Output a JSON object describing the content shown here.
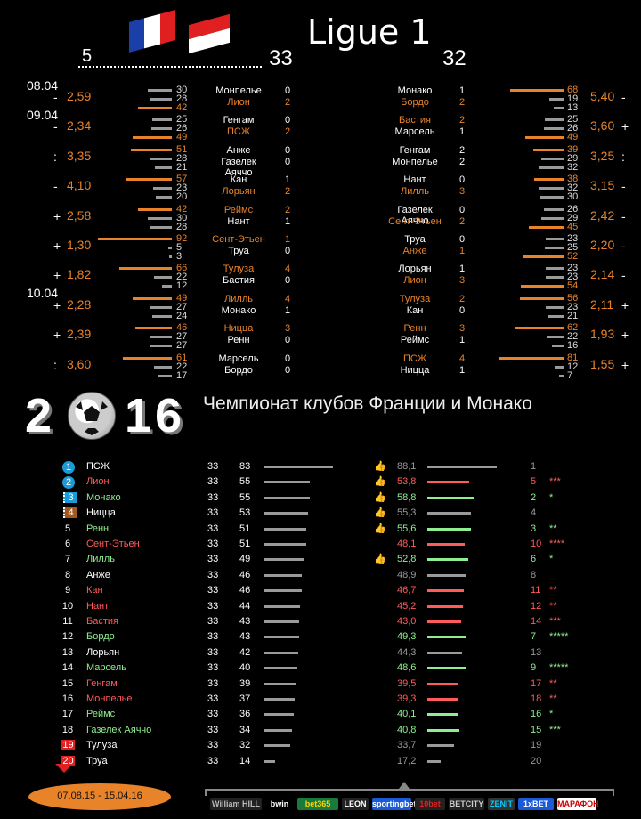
{
  "header": {
    "title": "Ligue 1",
    "round_left": "5",
    "round_mid": "33",
    "round_right": "32"
  },
  "dates": [
    "08.04",
    "09.04",
    "10.04"
  ],
  "left_matches": [
    {
      "sign": "-",
      "odd": "2,59",
      "home": "Монпелье",
      "away": "Лион",
      "hs": "0",
      "as": "2",
      "hc": "wh",
      "ac": "or",
      "stats": [
        "30",
        "28",
        "42"
      ]
    },
    {
      "sign": "-",
      "odd": "2,34",
      "home": "Генгам",
      "away": "ПСЖ",
      "hs": "0",
      "as": "2",
      "hc": "wh",
      "ac": "or",
      "stats": [
        "25",
        "26",
        "49"
      ]
    },
    {
      "sign": ":",
      "odd": "3,35",
      "home": "Анже",
      "away": "Газелек Аяччо",
      "hs": "0",
      "as": "0",
      "hc": "wh",
      "ac": "wh",
      "stats": [
        "51",
        "28",
        "21"
      ]
    },
    {
      "sign": "-",
      "odd": "4,10",
      "home": "Кан",
      "away": "Лорьян",
      "hs": "1",
      "as": "2",
      "hc": "wh",
      "ac": "or",
      "stats": [
        "57",
        "23",
        "20"
      ]
    },
    {
      "sign": "+",
      "odd": "2,58",
      "home": "Реймс",
      "away": "Нант",
      "hs": "2",
      "as": "1",
      "hc": "or",
      "ac": "wh",
      "stats": [
        "42",
        "30",
        "28"
      ]
    },
    {
      "sign": "+",
      "odd": "1,30",
      "home": "Сент-Этьен",
      "away": "Труа",
      "hs": "1",
      "as": "0",
      "hc": "or",
      "ac": "wh",
      "stats": [
        "92",
        "5",
        "3"
      ]
    },
    {
      "sign": "+",
      "odd": "1,82",
      "home": "Тулуза",
      "away": "Бастия",
      "hs": "4",
      "as": "0",
      "hc": "or",
      "ac": "wh",
      "stats": [
        "66",
        "22",
        "12"
      ]
    },
    {
      "sign": "+",
      "odd": "2,28",
      "home": "Лилль",
      "away": "Монако",
      "hs": "4",
      "as": "1",
      "hc": "or",
      "ac": "wh",
      "stats": [
        "49",
        "27",
        "24"
      ]
    },
    {
      "sign": "+",
      "odd": "2,39",
      "home": "Ницца",
      "away": "Ренн",
      "hs": "3",
      "as": "0",
      "hc": "or",
      "ac": "wh",
      "stats": [
        "46",
        "27",
        "27"
      ]
    },
    {
      "sign": ":",
      "odd": "3,60",
      "home": "Марсель",
      "away": "Бордо",
      "hs": "0",
      "as": "0",
      "hc": "wh",
      "ac": "wh",
      "stats": [
        "61",
        "22",
        "17"
      ]
    }
  ],
  "right_matches": [
    {
      "sign": "-",
      "odd": "5,40",
      "home": "Монако",
      "away": "Бордо",
      "hs": "1",
      "as": "2",
      "hc": "wh",
      "ac": "or",
      "stats": [
        "68",
        "19",
        "13"
      ]
    },
    {
      "sign": "+",
      "odd": "3,60",
      "home": "Бастия",
      "away": "Марсель",
      "hs": "2",
      "as": "1",
      "hc": "or",
      "ac": "wh",
      "stats": [
        "25",
        "26",
        "49"
      ]
    },
    {
      "sign": ":",
      "odd": "3,25",
      "home": "Генгам",
      "away": "Монпелье",
      "hs": "2",
      "as": "2",
      "hc": "wh",
      "ac": "wh",
      "stats": [
        "39",
        "29",
        "32"
      ]
    },
    {
      "sign": "-",
      "odd": "3,15",
      "home": "Нант",
      "away": "Лилль",
      "hs": "0",
      "as": "3",
      "hc": "wh",
      "ac": "or",
      "stats": [
        "38",
        "32",
        "30"
      ]
    },
    {
      "sign": "-",
      "odd": "2,42",
      "home": "Газелек Аяччо",
      "away": "Сент-Этьен",
      "hs": "0",
      "as": "2",
      "hc": "wh",
      "ac": "or",
      "stats": [
        "26",
        "29",
        "45"
      ]
    },
    {
      "sign": "-",
      "odd": "2,20",
      "home": "Труа",
      "away": "Анже",
      "hs": "0",
      "as": "1",
      "hc": "wh",
      "ac": "or",
      "stats": [
        "23",
        "25",
        "52"
      ]
    },
    {
      "sign": "-",
      "odd": "2,14",
      "home": "Лорьян",
      "away": "Лион",
      "hs": "1",
      "as": "3",
      "hc": "wh",
      "ac": "or",
      "stats": [
        "23",
        "23",
        "54"
      ]
    },
    {
      "sign": "+",
      "odd": "2,11",
      "home": "Тулуза",
      "away": "Кан",
      "hs": "2",
      "as": "0",
      "hc": "or",
      "ac": "wh",
      "stats": [
        "56",
        "23",
        "21"
      ]
    },
    {
      "sign": "+",
      "odd": "1,93",
      "home": "Ренн",
      "away": "Реймс",
      "hs": "3",
      "as": "1",
      "hc": "or",
      "ac": "wh",
      "stats": [
        "62",
        "22",
        "16"
      ]
    },
    {
      "sign": "+",
      "odd": "1,55",
      "home": "ПСЖ",
      "away": "Ницца",
      "hs": "4",
      "as": "1",
      "hc": "or",
      "ac": "wh",
      "stats": [
        "81",
        "12",
        "7"
      ]
    }
  ],
  "logo_year_parts": [
    "2",
    "1",
    "6"
  ],
  "championship_title": "Чемпионат клубов Франции и Монако",
  "table": [
    {
      "pos": "1",
      "name": "ПСЖ",
      "games": "33",
      "pts": "83",
      "rating": "88,1",
      "rank": "1",
      "stars": "",
      "nc": "wh",
      "rc": "gy",
      "badge": "circ",
      "thumb": true
    },
    {
      "pos": "2",
      "name": "Лион",
      "games": "33",
      "pts": "55",
      "rating": "53,8",
      "rank": "5",
      "stars": "***",
      "nc": "rd",
      "rc": "rd",
      "badge": "circ",
      "thumb": true
    },
    {
      "pos": "3",
      "name": "Монако",
      "games": "33",
      "pts": "55",
      "rating": "58,8",
      "rank": "2",
      "stars": "*",
      "nc": "gr",
      "rc": "gr",
      "badge": "sq",
      "thumb": true
    },
    {
      "pos": "4",
      "name": "Ницца",
      "games": "33",
      "pts": "53",
      "rating": "55,3",
      "rank": "4",
      "stars": "",
      "nc": "wh",
      "rc": "gy",
      "badge": "sqor",
      "thumb": true
    },
    {
      "pos": "5",
      "name": "Ренн",
      "games": "33",
      "pts": "51",
      "rating": "55,6",
      "rank": "3",
      "stars": "**",
      "nc": "gr",
      "rc": "gr",
      "badge": "",
      "thumb": true
    },
    {
      "pos": "6",
      "name": "Сент-Этьен",
      "games": "33",
      "pts": "51",
      "rating": "48,1",
      "rank": "10",
      "stars": "****",
      "nc": "rd",
      "rc": "rd",
      "badge": "",
      "thumb": false
    },
    {
      "pos": "7",
      "name": "Лилль",
      "games": "33",
      "pts": "49",
      "rating": "52,8",
      "rank": "6",
      "stars": "*",
      "nc": "gr",
      "rc": "gr",
      "badge": "",
      "thumb": true
    },
    {
      "pos": "8",
      "name": "Анже",
      "games": "33",
      "pts": "46",
      "rating": "48,9",
      "rank": "8",
      "stars": "",
      "nc": "wh",
      "rc": "gy",
      "badge": "",
      "thumb": false
    },
    {
      "pos": "9",
      "name": "Кан",
      "games": "33",
      "pts": "46",
      "rating": "46,7",
      "rank": "11",
      "stars": "**",
      "nc": "rd",
      "rc": "rd",
      "badge": "",
      "thumb": false
    },
    {
      "pos": "10",
      "name": "Нант",
      "games": "33",
      "pts": "44",
      "rating": "45,2",
      "rank": "12",
      "stars": "**",
      "nc": "rd",
      "rc": "rd",
      "badge": "",
      "thumb": false
    },
    {
      "pos": "11",
      "name": "Бастия",
      "games": "33",
      "pts": "43",
      "rating": "43,0",
      "rank": "14",
      "stars": "***",
      "nc": "rd",
      "rc": "rd",
      "badge": "",
      "thumb": false
    },
    {
      "pos": "12",
      "name": "Бордо",
      "games": "33",
      "pts": "43",
      "rating": "49,3",
      "rank": "7",
      "stars": "*****",
      "nc": "gr",
      "rc": "gr",
      "badge": "",
      "thumb": false
    },
    {
      "pos": "13",
      "name": "Лорьян",
      "games": "33",
      "pts": "42",
      "rating": "44,3",
      "rank": "13",
      "stars": "",
      "nc": "wh",
      "rc": "gy",
      "badge": "",
      "thumb": false
    },
    {
      "pos": "14",
      "name": "Марсель",
      "games": "33",
      "pts": "40",
      "rating": "48,6",
      "rank": "9",
      "stars": "*****",
      "nc": "gr",
      "rc": "gr",
      "badge": "",
      "thumb": false
    },
    {
      "pos": "15",
      "name": "Генгам",
      "games": "33",
      "pts": "39",
      "rating": "39,5",
      "rank": "17",
      "stars": "**",
      "nc": "rd",
      "rc": "rd",
      "badge": "",
      "thumb": false
    },
    {
      "pos": "16",
      "name": "Монпелье",
      "games": "33",
      "pts": "37",
      "rating": "39,3",
      "rank": "18",
      "stars": "**",
      "nc": "rd",
      "rc": "rd",
      "badge": "",
      "thumb": false
    },
    {
      "pos": "17",
      "name": "Реймс",
      "games": "33",
      "pts": "36",
      "rating": "40,1",
      "rank": "16",
      "stars": "*",
      "nc": "gr",
      "rc": "gr",
      "badge": "",
      "thumb": false
    },
    {
      "pos": "18",
      "name": "Газелек Аяччо",
      "games": "33",
      "pts": "34",
      "rating": "40,8",
      "rank": "15",
      "stars": "***",
      "nc": "gr",
      "rc": "gr",
      "badge": "",
      "thumb": false
    },
    {
      "pos": "19",
      "name": "Тулуза",
      "games": "33",
      "pts": "32",
      "rating": "33,7",
      "rank": "19",
      "stars": "",
      "nc": "wh",
      "rc": "gy",
      "badge": "red",
      "thumb": false
    },
    {
      "pos": "20",
      "name": "Труа",
      "games": "33",
      "pts": "14",
      "rating": "17,2",
      "rank": "20",
      "stars": "",
      "nc": "wh",
      "rc": "gy",
      "badge": "red",
      "thumb": false
    }
  ],
  "footer": {
    "period": "07.08.15 - 15.04.16",
    "bookmakers": [
      "William HILL",
      "bwin",
      "bet365",
      "LEON",
      "sportingbet",
      "10bet",
      "BETCITY",
      "ZENIT",
      "1xBET",
      "МАРАФОН"
    ]
  },
  "colors": {
    "orange": "#e8832a",
    "green": "#8fee8f",
    "red": "#ff5b5b",
    "gray_bar": "#9a9a9a",
    "badge_blue": "#1a9ad6",
    "badge_red": "#e02020"
  }
}
